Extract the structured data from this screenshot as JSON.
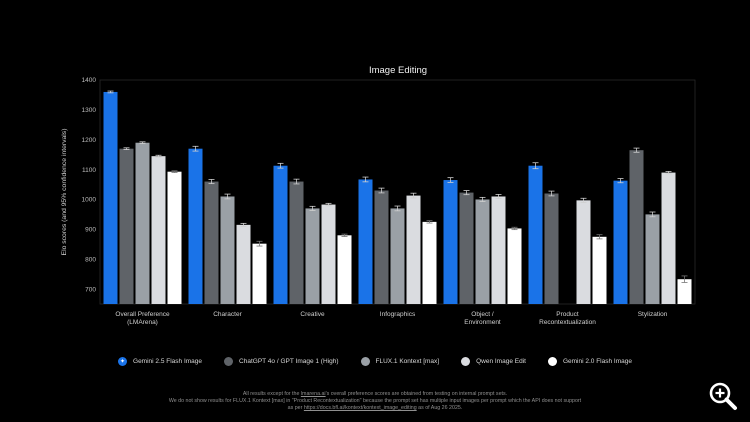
{
  "chart_data": {
    "type": "bar",
    "title": "Image Editing",
    "ylabel": "Elo scores (and 95% confidence intervals)",
    "ylim": [
      650,
      1400
    ],
    "yticks": [
      700,
      800,
      900,
      1000,
      1100,
      1200,
      1300,
      1400
    ],
    "grid": false,
    "legend_position": "bottom",
    "categories": [
      "Overall Preference\n(LMArena)",
      "Character",
      "Creative",
      "Infographics",
      "Object /\nEnvironment",
      "Product\nRecontextualization",
      "Stylization"
    ],
    "series": [
      {
        "name": "Gemini 2.5 Flash Image",
        "color": "#1a73e8",
        "values": [
          1360,
          1170,
          1113,
          1067,
          1065,
          1113,
          1063
        ],
        "errors": [
          3,
          8,
          8,
          8,
          8,
          10,
          7
        ]
      },
      {
        "name": "ChatGPT 4o / GPT Image 1 (High)",
        "color": "#5f6368",
        "values": [
          1170,
          1060,
          1060,
          1030,
          1023,
          1020,
          1165
        ],
        "errors": [
          3,
          7,
          8,
          8,
          7,
          8,
          7
        ]
      },
      {
        "name": "FLUX.1 Kontext [max]",
        "color": "#9aa0a6",
        "values": [
          1190,
          1010,
          970,
          970,
          1000,
          null,
          950
        ],
        "errors": [
          3,
          8,
          7,
          8,
          7,
          null,
          8
        ]
      },
      {
        "name": "Qwen Image Edit",
        "color": "#dadce0",
        "values": [
          1145,
          915,
          983,
          1013,
          1010,
          997,
          1090
        ],
        "errors": [
          3,
          5,
          4,
          8,
          7,
          7,
          4
        ]
      },
      {
        "name": "Gemini 2.0 Flash Image",
        "color": "#ffffff",
        "values": [
          1093,
          852,
          880,
          925,
          903,
          875,
          733
        ],
        "errors": [
          3,
          8,
          4,
          4,
          4,
          7,
          11
        ]
      }
    ]
  },
  "legend_icons": {
    "first": "sparkle-icon"
  },
  "footnote": {
    "line1_pre": "All results except for the ",
    "line1_link": "lmarena.ai",
    "line1_post": "'s overall preference scores are obtained from testing on internal prompt sets.",
    "line2": "We do not show results for FLUX.1 Kontext [max] in \"Product Recontextualization\" because the prompt set has multiple input images per prompt which the API does not support",
    "line3_pre": "as per ",
    "line3_link": "https://docs.bfl.ai/kontext/kontext_image_editing",
    "line3_post": " as of Aug 26 2025."
  },
  "controls": {
    "zoom_icon": "zoom-in-icon"
  }
}
